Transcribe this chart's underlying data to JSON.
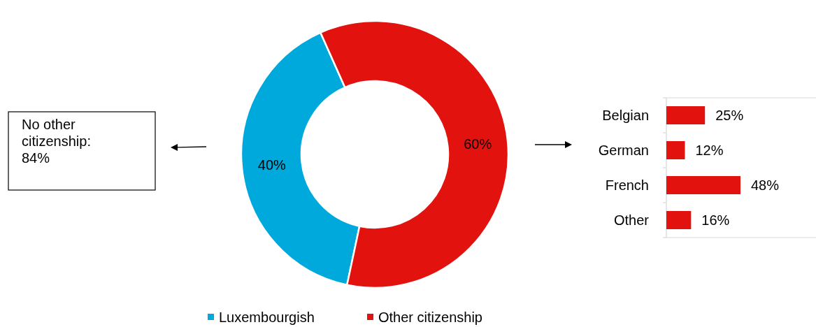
{
  "chart_data": [
    {
      "type": "donut",
      "categories": [
        "Luxembourgish",
        "Other citizenship"
      ],
      "values": [
        40,
        60
      ],
      "colors": [
        "#00a9dc",
        "#e2130f"
      ],
      "value_labels": [
        "40%",
        "60%"
      ],
      "legend": "bottom",
      "annotations": [
        "No other citizenship: 84%"
      ]
    },
    {
      "type": "bar",
      "orientation": "horizontal",
      "categories": [
        "Belgian",
        "German",
        "French",
        "Other"
      ],
      "values": [
        25,
        12,
        48,
        16
      ],
      "color": "#e2130f",
      "value_labels": [
        "25%",
        "12%",
        "48%",
        "16%"
      ]
    }
  ]
}
